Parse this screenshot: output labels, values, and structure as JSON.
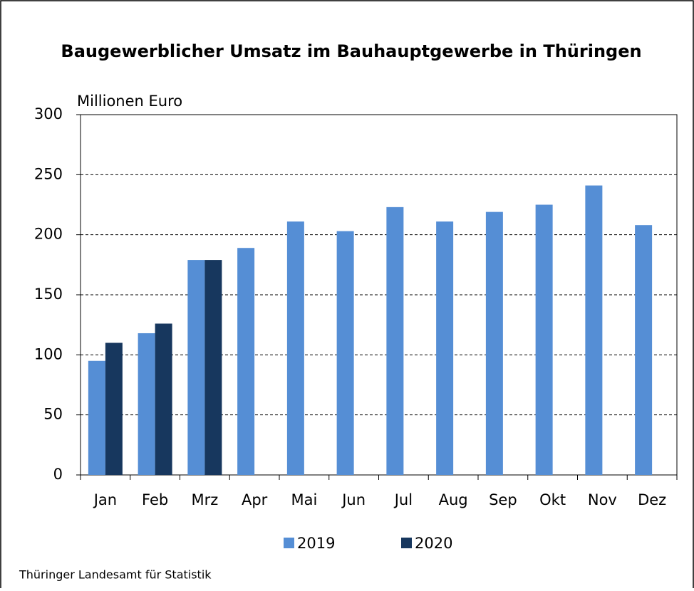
{
  "chart_data": {
    "type": "bar",
    "title": "Baugewerblicher Umsatz im Bauhauptgewerbe in Thüringen",
    "y_label": "Millionen Euro",
    "source": "Thüringer Landesamt für Statistik",
    "categories": [
      "Jan",
      "Feb",
      "Mrz",
      "Apr",
      "Mai",
      "Jun",
      "Jul",
      "Aug",
      "Sep",
      "Okt",
      "Nov",
      "Dez"
    ],
    "series": [
      {
        "name": "2019",
        "color": "#558ed5",
        "values": [
          95,
          118,
          179,
          189,
          211,
          203,
          223,
          211,
          219,
          225,
          241,
          208
        ]
      },
      {
        "name": "2020",
        "color": "#17375e",
        "values": [
          110,
          126,
          179,
          null,
          null,
          null,
          null,
          null,
          null,
          null,
          null,
          null
        ]
      }
    ],
    "ylim": [
      0,
      300
    ],
    "yticks": [
      0,
      50,
      100,
      150,
      200,
      250,
      300
    ],
    "grid": true
  }
}
